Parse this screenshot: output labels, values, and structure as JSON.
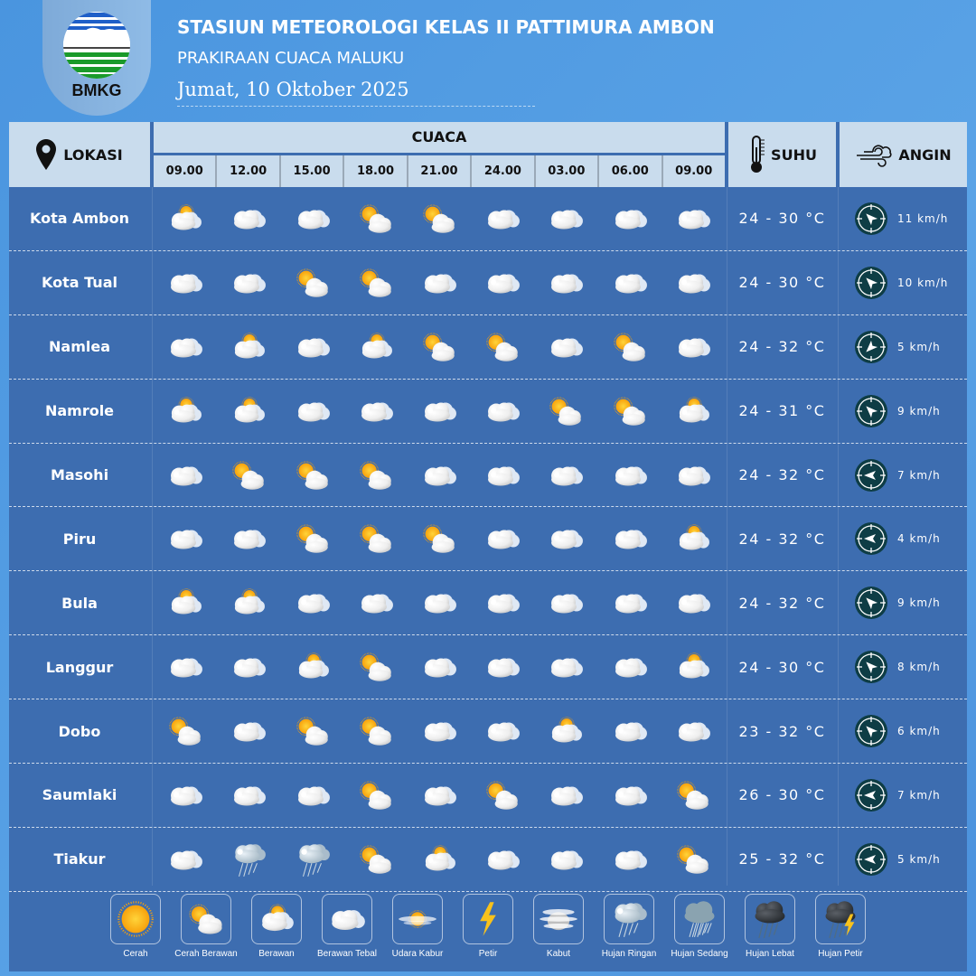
{
  "header": {
    "logo_text": "BMKG",
    "title": "STASIUN METEOROLOGI KELAS II PATTIMURA AMBON",
    "subtitle": "PRAKIRAAN CUACA MALUKU",
    "date": "Jumat, 10 Oktober 2025"
  },
  "columns": {
    "lokasi": "LOKASI",
    "cuaca": "CUACA",
    "suhu": "SUHU",
    "angin": "ANGIN",
    "times": [
      "09.00",
      "12.00",
      "15.00",
      "18.00",
      "21.00",
      "24.00",
      "03.00",
      "06.00",
      "09.00"
    ]
  },
  "colors": {
    "table_bg": "#3d6db0",
    "header_bg": "#c9dced",
    "page_bg": "#4a95df",
    "compass": "#0e3d45"
  },
  "rows": [
    {
      "location": "Kota Ambon",
      "weather": [
        "berawan",
        "berawan-tebal",
        "berawan-tebal",
        "cerah-berawan",
        "cerah-berawan",
        "berawan-tebal",
        "berawan-tebal",
        "berawan-tebal",
        "berawan-tebal"
      ],
      "temp": "24 - 30 °C",
      "wind": "11 km/h",
      "wind_dir_deg": 315
    },
    {
      "location": "Kota Tual",
      "weather": [
        "berawan-tebal",
        "berawan-tebal",
        "cerah-berawan",
        "cerah-berawan",
        "berawan-tebal",
        "berawan-tebal",
        "berawan-tebal",
        "berawan-tebal",
        "berawan-tebal"
      ],
      "temp": "24 - 30 °C",
      "wind": "10 km/h",
      "wind_dir_deg": 315
    },
    {
      "location": "Namlea",
      "weather": [
        "berawan-tebal",
        "berawan",
        "berawan-tebal",
        "berawan",
        "cerah-berawan",
        "cerah-berawan",
        "berawan-tebal",
        "cerah-berawan",
        "berawan-tebal"
      ],
      "temp": "24 - 32 °C",
      "wind": "5 km/h",
      "wind_dir_deg": 225
    },
    {
      "location": "Namrole",
      "weather": [
        "berawan",
        "berawan",
        "berawan-tebal",
        "berawan-tebal",
        "berawan-tebal",
        "berawan-tebal",
        "cerah-berawan",
        "cerah-berawan",
        "berawan"
      ],
      "temp": "24 - 31 °C",
      "wind": "9 km/h",
      "wind_dir_deg": 315
    },
    {
      "location": "Masohi",
      "weather": [
        "berawan-tebal",
        "cerah-berawan",
        "cerah-berawan",
        "cerah-berawan",
        "berawan-tebal",
        "berawan-tebal",
        "berawan-tebal",
        "berawan-tebal",
        "berawan-tebal"
      ],
      "temp": "24 - 32 °C",
      "wind": "7 km/h",
      "wind_dir_deg": 270
    },
    {
      "location": "Piru",
      "weather": [
        "berawan-tebal",
        "berawan-tebal",
        "cerah-berawan",
        "cerah-berawan",
        "cerah-berawan",
        "berawan-tebal",
        "berawan-tebal",
        "berawan-tebal",
        "berawan"
      ],
      "temp": "24 - 32 °C",
      "wind": "4 km/h",
      "wind_dir_deg": 270
    },
    {
      "location": "Bula",
      "weather": [
        "berawan",
        "berawan",
        "berawan-tebal",
        "berawan-tebal",
        "berawan-tebal",
        "berawan-tebal",
        "berawan-tebal",
        "berawan-tebal",
        "berawan-tebal"
      ],
      "temp": "24 - 32 °C",
      "wind": "9 km/h",
      "wind_dir_deg": 315
    },
    {
      "location": "Langgur",
      "weather": [
        "berawan-tebal",
        "berawan-tebal",
        "berawan",
        "cerah-berawan",
        "berawan-tebal",
        "berawan-tebal",
        "berawan-tebal",
        "berawan-tebal",
        "berawan"
      ],
      "temp": "24 - 30 °C",
      "wind": "8 km/h",
      "wind_dir_deg": 315
    },
    {
      "location": "Dobo",
      "weather": [
        "cerah-berawan",
        "berawan-tebal",
        "cerah-berawan",
        "cerah-berawan",
        "berawan-tebal",
        "berawan-tebal",
        "berawan",
        "berawan-tebal",
        "berawan-tebal"
      ],
      "temp": "23 - 32 °C",
      "wind": "6 km/h",
      "wind_dir_deg": 315
    },
    {
      "location": "Saumlaki",
      "weather": [
        "berawan-tebal",
        "berawan-tebal",
        "berawan-tebal",
        "cerah-berawan",
        "berawan-tebal",
        "cerah-berawan",
        "berawan-tebal",
        "berawan-tebal",
        "cerah-berawan"
      ],
      "temp": "26 - 30 °C",
      "wind": "7 km/h",
      "wind_dir_deg": 270
    },
    {
      "location": "Tiakur",
      "weather": [
        "berawan-tebal",
        "hujan-ringan",
        "hujan-ringan",
        "cerah-berawan",
        "berawan",
        "berawan-tebal",
        "berawan-tebal",
        "berawan-tebal",
        "cerah-berawan"
      ],
      "temp": "25 - 32 °C",
      "wind": "5 km/h",
      "wind_dir_deg": 270
    }
  ],
  "legend": [
    {
      "icon": "cerah",
      "label": "Cerah"
    },
    {
      "icon": "cerah-berawan",
      "label": "Cerah Berawan"
    },
    {
      "icon": "berawan",
      "label": "Berawan"
    },
    {
      "icon": "berawan-tebal",
      "label": "Berawan Tebal"
    },
    {
      "icon": "udara-kabur",
      "label": "Udara Kabur"
    },
    {
      "icon": "petir",
      "label": "Petir"
    },
    {
      "icon": "kabut",
      "label": "Kabut"
    },
    {
      "icon": "hujan-ringan",
      "label": "Hujan Ringan"
    },
    {
      "icon": "hujan-sedang",
      "label": "Hujan Sedang"
    },
    {
      "icon": "hujan-lebat",
      "label": "Hujan Lebat"
    },
    {
      "icon": "hujan-petir",
      "label": "Hujan Petir"
    }
  ]
}
